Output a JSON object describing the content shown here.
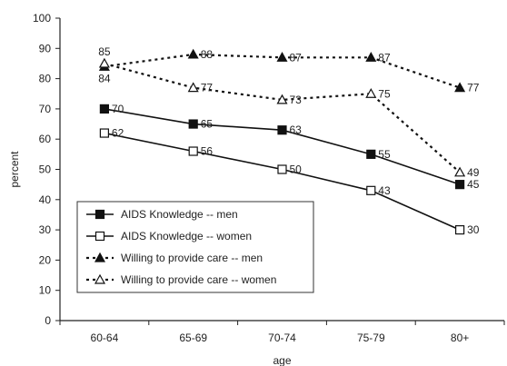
{
  "chart_data": {
    "type": "line",
    "title": "",
    "xlabel": "age",
    "ylabel": "percent",
    "categories": [
      "60-64",
      "65-69",
      "70-74",
      "75-79",
      "80+"
    ],
    "ylim": [
      0,
      100
    ],
    "yticks": [
      0,
      10,
      20,
      30,
      40,
      50,
      60,
      70,
      80,
      90,
      100
    ],
    "grid": false,
    "legend_position": "bottom-left",
    "series": [
      {
        "name": "AIDS Knowledge -- men",
        "values": [
          70,
          65,
          63,
          55,
          45
        ],
        "labels": [
          "70",
          "65",
          "63",
          "55",
          "45"
        ],
        "line_style": "solid",
        "marker": "filled-square",
        "color": "#111111"
      },
      {
        "name": "AIDS Knowledge -- women",
        "values": [
          62,
          56,
          50,
          43,
          30
        ],
        "labels": [
          "62",
          "56",
          "50",
          "43",
          "30"
        ],
        "line_style": "solid",
        "marker": "open-square",
        "color": "#111111"
      },
      {
        "name": "Willing to provide care -- men",
        "values": [
          84,
          88,
          87,
          87,
          77
        ],
        "labels": [
          "84",
          "88",
          "87",
          "87",
          "77"
        ],
        "line_style": "dotted",
        "marker": "filled-triangle",
        "color": "#111111"
      },
      {
        "name": "Willing to provide care -- women",
        "values": [
          85,
          77,
          73,
          75,
          49
        ],
        "labels": [
          "85",
          "77",
          "73",
          "75",
          "49"
        ],
        "line_style": "dotted",
        "marker": "open-triangle",
        "color": "#111111"
      }
    ]
  }
}
